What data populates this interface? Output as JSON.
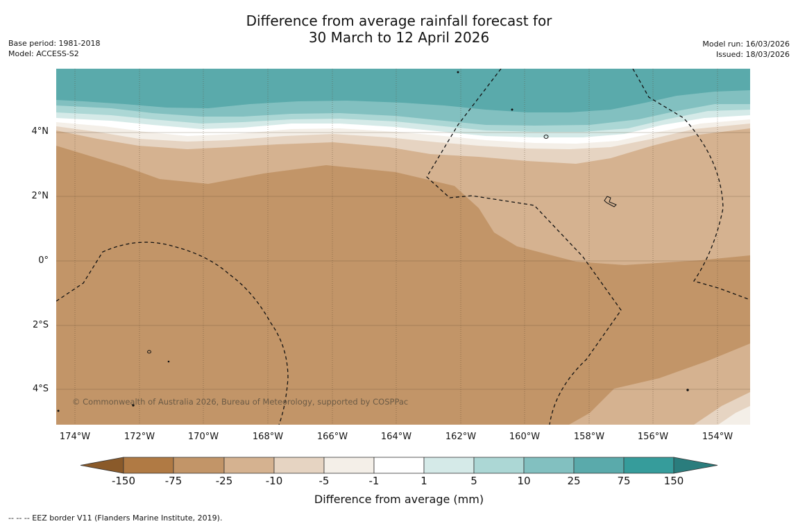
{
  "header": {
    "title_line1": "Difference from average rainfall forecast for",
    "title_line2": "30 March to 12 April 2026",
    "base_period": "Base period: 1981-2018",
    "model": "Model: ACCESS-S2",
    "model_run": "Model run: 16/03/2026",
    "issued": "Issued: 18/03/2026"
  },
  "map": {
    "copyright": "© Commonwealth of Australia 2026, Bureau of Meteorology, supported by COSPPac",
    "lat_labels": [
      "4°N",
      "2°N",
      "0°",
      "2°S",
      "4°S"
    ],
    "lon_labels": [
      "174°W",
      "172°W",
      "170°W",
      "168°W",
      "166°W",
      "164°W",
      "162°W",
      "160°W",
      "158°W",
      "156°W",
      "154°W"
    ],
    "lon_range": [
      -174.6,
      -153.0
    ],
    "lat_range": [
      -5.1,
      5.8
    ]
  },
  "colorbar": {
    "ticks": [
      "-150",
      "-75",
      "-25",
      "-10",
      "-5",
      "-1",
      "1",
      "5",
      "10",
      "25",
      "75",
      "150"
    ],
    "colors": [
      "#8a5a2a",
      "#b07a44",
      "#c29568",
      "#d5b290",
      "#e6d4c2",
      "#f4efe8",
      "#ffffff",
      "#d5eae8",
      "#acd7d5",
      "#82c0c0",
      "#5aaaab",
      "#369c9b",
      "#2a7d7d"
    ],
    "label": "Difference from average (mm)"
  },
  "legend": {
    "eez": "--  --  -- EEZ border V11 (Flanders Marine Institute, 2019)."
  }
}
